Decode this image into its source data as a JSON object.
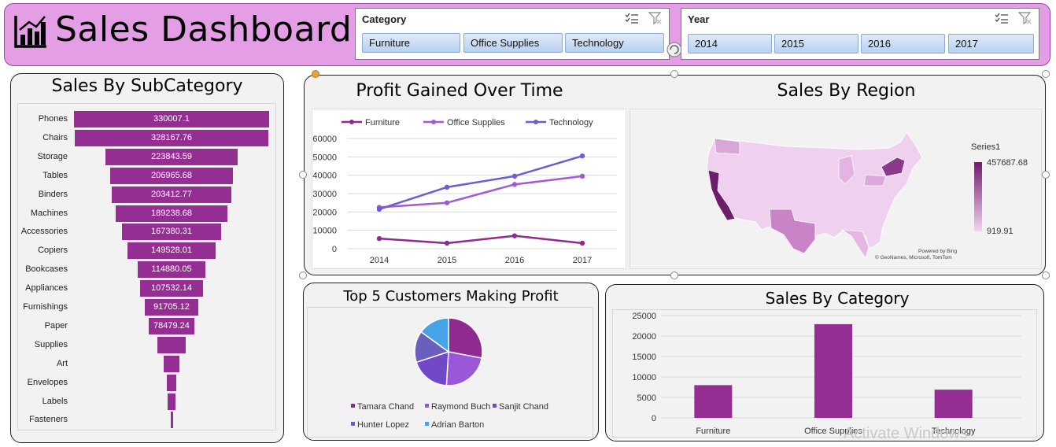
{
  "header": {
    "title": "Sales Dashboard",
    "bg_color": "#e49ee6"
  },
  "slicers": {
    "category": {
      "title": "Category",
      "items": [
        "Furniture",
        "Office Supplies",
        "Technology"
      ]
    },
    "year": {
      "title": "Year",
      "items": [
        "2014",
        "2015",
        "2016",
        "2017"
      ]
    }
  },
  "panels": {
    "subcategory_title": "Sales By SubCategory",
    "profit_title": "Profit Gained Over Time",
    "region_title": "Sales By Region",
    "customers_title": "Top 5 Customers Making Profit",
    "category_title": "Sales By Category"
  },
  "chart_data": [
    {
      "id": "subcategory",
      "type": "bar",
      "categories": [
        "Phones",
        "Chairs",
        "Storage",
        "Tables",
        "Binders",
        "Machines",
        "Accessories",
        "Copiers",
        "Bookcases",
        "Appliances",
        "Furnishings",
        "Paper",
        "Supplies",
        "Art",
        "Envelopes",
        "Labels",
        "Fasteners"
      ],
      "values": [
        330007.1,
        328167.76,
        223843.59,
        206965.68,
        203412.77,
        189238.68,
        167380.31,
        149528.01,
        114880.05,
        107532.14,
        91705.12,
        78479.24,
        46673.54,
        27118.79,
        16476.4,
        12486.31,
        3024.28
      ],
      "value_labels": [
        "330007.1",
        "328167.76",
        "223843.59",
        "206965.68",
        "203412.77",
        "189238.68",
        "167380.31",
        "149528.01",
        "114880.05",
        "107532.14",
        "91705.12",
        "78479.24",
        "",
        "",
        "",
        "",
        ""
      ],
      "color": "#942e92"
    },
    {
      "id": "profit",
      "type": "line",
      "x": [
        "2014",
        "2015",
        "2016",
        "2017"
      ],
      "series": [
        {
          "name": "Furniture",
          "values": [
            5500,
            3000,
            7000,
            3000
          ],
          "color": "#8e2a90"
        },
        {
          "name": "Office Supplies",
          "values": [
            22500,
            25000,
            35000,
            39500
          ],
          "color": "#a159d6"
        },
        {
          "name": "Technology",
          "values": [
            21500,
            33500,
            39500,
            50500
          ],
          "color": "#6c5cd6"
        }
      ],
      "yticks": [
        "60000",
        "50000",
        "40000",
        "30000",
        "20000",
        "10000",
        "0"
      ],
      "ylim": [
        0,
        60000
      ],
      "legend": "top"
    },
    {
      "id": "region",
      "type": "map",
      "legend_title": "Series1",
      "max_label": "457687.68",
      "min_label": "919.91",
      "credit1": "Powered by Bing",
      "credit2": "© GeoNames, Microsoft, TomTom",
      "color_low": "#f2d3f2",
      "color_high": "#6e1d6c"
    },
    {
      "id": "customers",
      "type": "pie",
      "labels": [
        "Tamara Chand",
        "Raymond Buch",
        "Sanjit Chand",
        "Hunter Lopez",
        "Adrian Barton"
      ],
      "values": [
        28,
        23,
        19,
        15,
        15
      ],
      "colors": [
        "#8e2a90",
        "#9a57d8",
        "#7048c8",
        "#6a5fbd",
        "#47a3e8"
      ],
      "legend": "bottom"
    },
    {
      "id": "category",
      "type": "bar",
      "categories": [
        "Furniture",
        "Office Supplies",
        "Technology"
      ],
      "values": [
        8000,
        22900,
        6900
      ],
      "yticks": [
        "25000",
        "20000",
        "15000",
        "10000",
        "5000",
        "0"
      ],
      "ylim": [
        0,
        25000
      ],
      "color": "#942e92"
    }
  ],
  "watermark": "Activate Windows"
}
